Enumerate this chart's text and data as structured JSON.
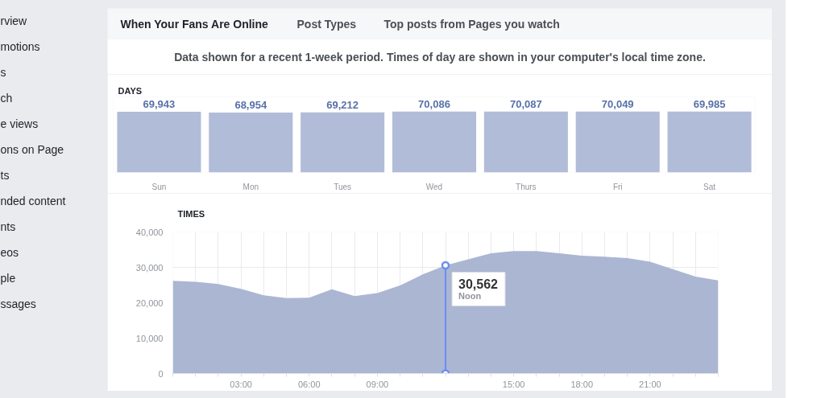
{
  "chart_data": [
    {
      "type": "other",
      "annotations": [
        "rview",
        "motions",
        "s",
        "ch",
        "e views",
        "ons on Page",
        "ts",
        "nded content",
        "nts",
        "eos",
        "ple",
        "ssages"
      ]
    },
    {
      "type": "other",
      "title": "When Your Fans Are Online",
      "subtitle": "Data shown for a recent 1-week period. Times of day are shown in your computer's local time zone.",
      "annotations": [
        "Post Types",
        "Top posts from Pages you watch"
      ]
    },
    {
      "type": "bar",
      "title": "DAYS",
      "categories": [
        "Sun",
        "Mon",
        "Tues",
        "Wed",
        "Thurs",
        "Fri",
        "Sat"
      ],
      "values": [
        69943,
        68954,
        69212,
        70086,
        70087,
        70049,
        69985
      ],
      "value_labels": [
        "69,943",
        "68,954",
        "69,212",
        "70,086",
        "70,087",
        "70,049",
        "69,985"
      ],
      "color": "#b1bcd8"
    },
    {
      "type": "area",
      "title": "TIMES",
      "x": [
        0,
        1,
        2,
        3,
        4,
        5,
        6,
        7,
        8,
        9,
        10,
        11,
        12,
        13,
        14,
        15,
        16,
        17,
        18,
        19,
        20,
        21,
        22,
        23,
        24
      ],
      "values": [
        26200,
        25900,
        25300,
        23900,
        22100,
        21300,
        21400,
        23800,
        21900,
        22700,
        24900,
        28000,
        30562,
        32300,
        34000,
        34600,
        34600,
        34000,
        33300,
        33000,
        32600,
        31600,
        29500,
        27400,
        26300
      ],
      "color": "#abb6d3",
      "xlim": [
        0,
        24
      ],
      "ylim": [
        0,
        40000
      ],
      "xticks": [
        {
          "value": 0,
          "label": null
        },
        {
          "value": 1,
          "label": null
        },
        {
          "value": 2,
          "label": null
        },
        {
          "value": 3,
          "label": "03:00"
        },
        {
          "value": 4,
          "label": null
        },
        {
          "value": 5,
          "label": null
        },
        {
          "value": 6,
          "label": "06:00"
        },
        {
          "value": 7,
          "label": null
        },
        {
          "value": 8,
          "label": null
        },
        {
          "value": 9,
          "label": "09:00"
        },
        {
          "value": 10,
          "label": null
        },
        {
          "value": 11,
          "label": null
        },
        {
          "value": 12,
          "label": null
        },
        {
          "value": 13,
          "label": null
        },
        {
          "value": 14,
          "label": null
        },
        {
          "value": 15,
          "label": "15:00"
        },
        {
          "value": 16,
          "label": null
        },
        {
          "value": 17,
          "label": null
        },
        {
          "value": 18,
          "label": "18:00"
        },
        {
          "value": 19,
          "label": null
        },
        {
          "value": 20,
          "label": null
        },
        {
          "value": 21,
          "label": "21:00"
        },
        {
          "value": 22,
          "label": null
        },
        {
          "value": 23,
          "label": null
        },
        {
          "value": 24,
          "label": null
        }
      ],
      "yticks": [
        0,
        {
          "value": 10000,
          "label": "10,000"
        },
        {
          "value": 20000,
          "label": "20,000"
        },
        {
          "value": 30000,
          "label": "30,000"
        },
        {
          "value": 40000,
          "label": "40,000"
        }
      ],
      "grid": true,
      "annotations": [
        {
          "text": "30,562\nNoon",
          "x": 12,
          "y": 30562
        }
      ]
    }
  ]
}
